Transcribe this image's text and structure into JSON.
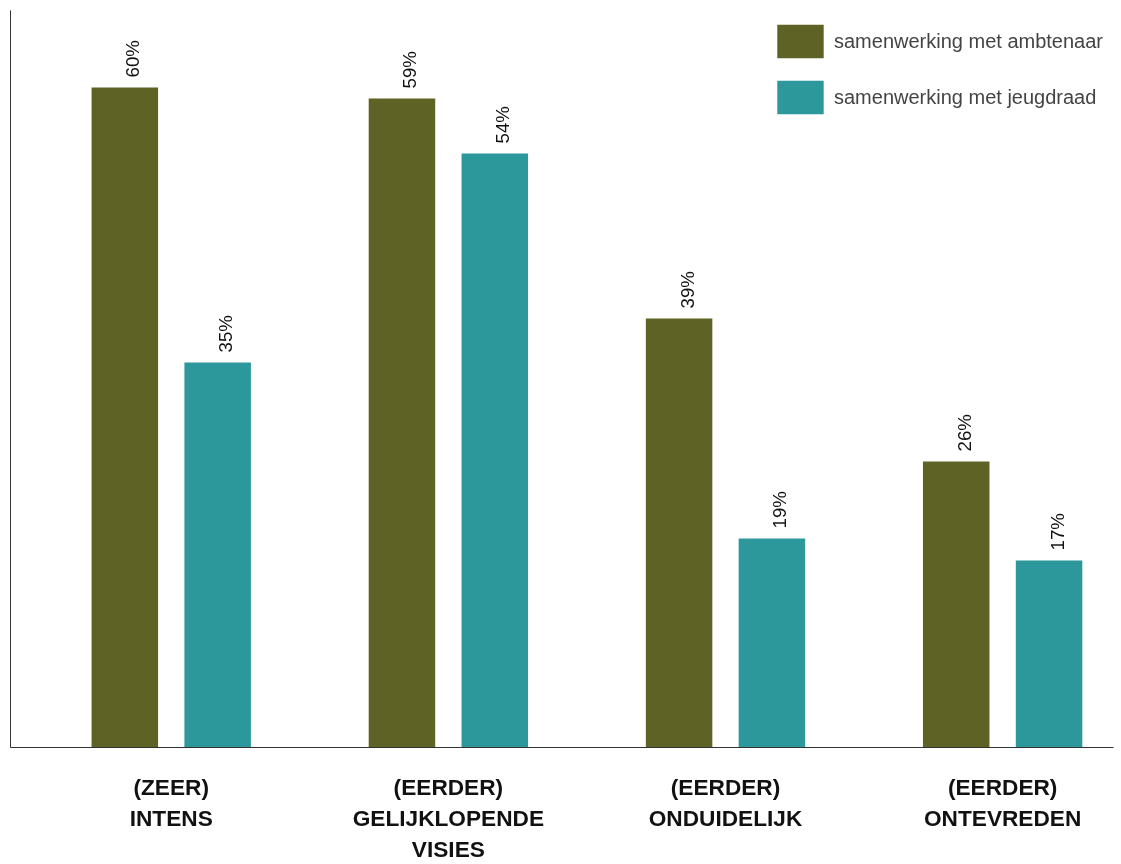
{
  "chart_data": {
    "type": "bar",
    "categories": [
      "(ZEER)\nINTENS",
      "(EERDER)\nGELIJKLOPENDE\nVISIES",
      "(EERDER)\nONDUIDELIJK",
      "(EERDER)\nONTEVREDEN"
    ],
    "series": [
      {
        "name": "samenwerking met ambtenaar",
        "color": "#5e6325",
        "values": [
          60,
          59,
          39,
          26
        ],
        "value_labels": [
          "60%",
          "59%",
          "39%",
          "26%"
        ]
      },
      {
        "name": "samenwerking met jeugdraad",
        "color": "#2c989c",
        "values": [
          35,
          54,
          19,
          17
        ],
        "value_labels": [
          "35%",
          "54%",
          "19%",
          "17%"
        ]
      }
    ],
    "ylim": [
      0,
      67
    ],
    "tick_labels": "x",
    "grid": false,
    "legend": "top right"
  }
}
